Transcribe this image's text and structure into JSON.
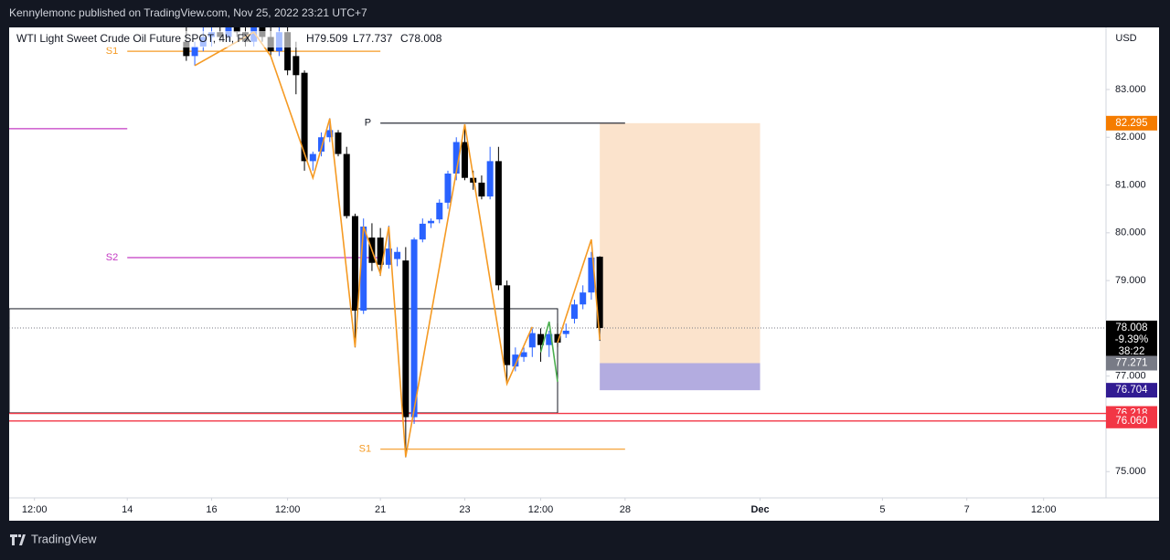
{
  "header": "Kennylemonc published on TradingView.com, Nov 25, 2022 23:21 UTC+7",
  "footer": "TradingView",
  "chart_data": {
    "type": "candlestick",
    "title": "WTI Light Sweet Crude Oil Future SPOT, 4h, FX",
    "ohlc": [
      "H79.509",
      "L77.737",
      "C78.008"
    ],
    "currency": "USD",
    "up_color": "#2962ff",
    "down_color": "#000000",
    "xlim": [
      -3,
      127
    ],
    "xticks": [
      {
        "value": 0,
        "label": "12:00"
      },
      {
        "value": 11,
        "label": "14"
      },
      {
        "value": 21,
        "label": "16"
      },
      {
        "value": 30,
        "label": "12:00"
      },
      {
        "value": 41,
        "label": "21"
      },
      {
        "value": 51,
        "label": "23"
      },
      {
        "value": 60,
        "label": "12:00"
      },
      {
        "value": 70,
        "label": "28"
      },
      {
        "value": 86,
        "label": "Dec"
      },
      {
        "value": 100.5,
        "label": "5"
      },
      {
        "value": 110.5,
        "label": "7"
      },
      {
        "value": 119.6,
        "label": "12:00"
      }
    ],
    "ylim": [
      74.45,
      84.3
    ],
    "yticks": [
      {
        "value": 75,
        "label": "75.000"
      },
      {
        "value": 77,
        "label": "77.000"
      },
      {
        "value": 79,
        "label": "79.000"
      },
      {
        "value": 80,
        "label": "80.000"
      },
      {
        "value": 81,
        "label": "81.000"
      },
      {
        "value": 82,
        "label": "82.000"
      },
      {
        "value": 83,
        "label": "83.000"
      }
    ],
    "grid": false,
    "x": [
      18,
      19,
      20,
      21,
      22,
      23,
      24,
      25,
      26,
      27,
      28,
      29,
      30,
      31,
      32,
      33,
      34,
      35,
      36,
      37,
      38,
      39,
      40,
      41,
      42,
      43,
      44,
      45,
      46,
      47,
      48,
      49,
      50,
      51,
      52,
      53,
      54,
      55,
      56,
      57,
      58,
      59,
      60,
      61,
      62,
      63,
      64,
      65,
      66,
      67
    ],
    "open": [
      84.0,
      83.7,
      83.9,
      84.1,
      84.2,
      84.1,
      84.3,
      84.2,
      84.0,
      84.3,
      84.1,
      83.8,
      84.2,
      83.7,
      83.35,
      81.5,
      81.7,
      82.0,
      82.1,
      81.65,
      80.35,
      78.37,
      79.9,
      79.9,
      79.33,
      79.45,
      79.42,
      76.14,
      79.86,
      80.2,
      80.28,
      80.63,
      81.24,
      81.9,
      81.15,
      81.05,
      80.76,
      81.5,
      78.9,
      77.2,
      77.4,
      77.6,
      77.88,
      77.65,
      77.88,
      77.88,
      78.2,
      78.5,
      78.75,
      79.5
    ],
    "high": [
      84.3,
      84.0,
      84.3,
      84.4,
      84.4,
      84.4,
      84.5,
      84.4,
      84.4,
      84.5,
      84.3,
      84.4,
      84.4,
      84.0,
      83.4,
      81.7,
      82.1,
      82.4,
      82.15,
      81.8,
      80.4,
      80.3,
      80.2,
      80.1,
      80.15,
      79.7,
      79.7,
      79.9,
      80.3,
      80.3,
      80.7,
      81.3,
      82.0,
      82.27,
      81.3,
      81.2,
      81.8,
      81.8,
      79.0,
      77.6,
      77.6,
      78.0,
      78.0,
      77.95,
      78.1,
      78.1,
      78.6,
      78.9,
      79.6,
      79.509
    ],
    "low": [
      83.6,
      83.5,
      83.8,
      83.9,
      84.0,
      84.0,
      84.1,
      83.9,
      83.9,
      84.0,
      83.7,
      83.7,
      83.3,
      82.9,
      81.3,
      81.3,
      81.6,
      81.9,
      81.6,
      80.3,
      77.6,
      78.3,
      79.2,
      79.1,
      79.25,
      79.3,
      75.3,
      76.0,
      79.8,
      80.1,
      80.2,
      80.5,
      81.1,
      81.1,
      80.9,
      80.7,
      80.7,
      78.8,
      76.84,
      77.1,
      77.3,
      77.4,
      77.3,
      77.4,
      77.6,
      77.8,
      78.1,
      78.4,
      78.6,
      77.737
    ],
    "close": [
      83.7,
      83.9,
      84.1,
      84.2,
      84.1,
      84.3,
      84.2,
      84.0,
      84.3,
      84.1,
      83.8,
      84.2,
      83.4,
      83.3,
      81.5,
      81.65,
      82.0,
      82.15,
      81.65,
      80.35,
      78.37,
      80.13,
      79.37,
      79.33,
      79.67,
      79.6,
      76.14,
      79.86,
      80.19,
      80.25,
      80.63,
      81.24,
      81.9,
      81.15,
      81.05,
      80.76,
      81.5,
      78.9,
      77.23,
      77.45,
      77.5,
      77.9,
      77.65,
      77.88,
      77.7,
      77.95,
      78.5,
      78.75,
      79.48,
      78.008
    ],
    "series": [
      {
        "color": "#f59a23",
        "x": [
          19,
          26,
          28,
          33,
          35,
          38,
          39,
          41,
          42,
          44,
          51,
          56,
          59,
          60,
          62,
          66,
          67
        ],
        "values": [
          83.5,
          84.2,
          83.7,
          81.15,
          82.39,
          77.61,
          80.13,
          79.14,
          80.13,
          75.31,
          82.27,
          76.84,
          78.03,
          null,
          77.7,
          79.86,
          77.76
        ]
      },
      {
        "color": "#4caf50",
        "x": [
          60,
          61,
          62
        ],
        "values": [
          77.5,
          78.14,
          76.88
        ]
      }
    ],
    "levels": [
      {
        "label": "S1",
        "value": 83.8,
        "x": [
          11,
          41
        ],
        "color": "#f59a23"
      },
      {
        "label": "P",
        "value": 82.295,
        "x": [
          41,
          70
        ],
        "color": "#131722"
      },
      {
        "label": "S2",
        "value": 79.48,
        "x": [
          11,
          41
        ],
        "color": "#c43ac4"
      },
      {
        "label": "S1",
        "value": 75.47,
        "x": [
          41,
          70
        ],
        "color": "#f59a23"
      },
      {
        "value": 82.18,
        "x": [
          -3,
          11
        ],
        "color": "#c43ac4"
      }
    ],
    "box": {
      "x": [
        -3,
        62
      ],
      "top": 78.41,
      "bottom": 76.23
    },
    "position": {
      "x": [
        67,
        86
      ],
      "target": 82.295,
      "entry": 77.271,
      "stop": 76.704
    },
    "last_price": {
      "value": 78.008,
      "change": "-9.39%",
      "countdown": "38:22"
    },
    "price_labels": [
      {
        "value": 82.295,
        "color": "#f57c00"
      },
      {
        "value": 77.271,
        "color": "#787b86"
      },
      {
        "value": 76.704,
        "color": "#311b92"
      },
      {
        "value": 76.218,
        "color": "#f23645",
        "line": true
      },
      {
        "value": 76.06,
        "label": "76.060",
        "color": "#f23645",
        "line": true
      }
    ]
  }
}
